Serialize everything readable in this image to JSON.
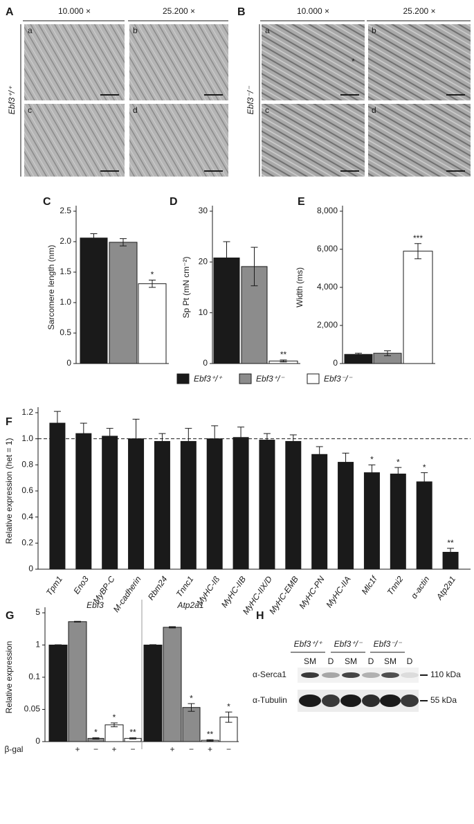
{
  "panel_letters": [
    "A",
    "B",
    "C",
    "D",
    "E",
    "F",
    "G",
    "H"
  ],
  "micrographs": {
    "magnifications": [
      "10.000 ×",
      "25.200 ×"
    ],
    "genotypes": [
      "Ebf3⁺/⁺",
      "Ebf3⁻/⁻"
    ],
    "image_labels": [
      "a",
      "b",
      "c",
      "d"
    ],
    "marker": "*"
  },
  "legend": [
    {
      "name": "Ebf3⁺/⁺",
      "color": "#1a1a1a"
    },
    {
      "name": "Ebf3⁺/⁻",
      "color": "#8c8c8c"
    },
    {
      "name": "Ebf3⁻/⁻",
      "color": "#ffffff"
    }
  ],
  "chart_data": [
    {
      "type": "bar",
      "ylabel": "Sarcomere length (nm)",
      "values": [
        2.06,
        1.99,
        1.31
      ],
      "errors": [
        0.07,
        0.06,
        0.06
      ],
      "significance": [
        null,
        null,
        "*"
      ],
      "ylim": [
        0,
        2.5
      ],
      "yticks": [
        0,
        0.5,
        {
          "value": 1,
          "label": "1.0"
        },
        1.5,
        {
          "value": 2,
          "label": "2.0"
        },
        2.5
      ]
    },
    {
      "type": "bar",
      "ylabel": "Sp Pt (mN cm⁻²)",
      "values": [
        20.8,
        19.1,
        0.5
      ],
      "errors": [
        3.2,
        3.8,
        0.2
      ],
      "significance": [
        null,
        null,
        "**"
      ],
      "ylim": [
        0,
        30
      ],
      "yticks": [
        0,
        10,
        20,
        30
      ]
    },
    {
      "type": "bar",
      "ylabel": "Width (ms)",
      "values": [
        480,
        540,
        5900
      ],
      "errors": [
        60,
        130,
        400
      ],
      "significance": [
        null,
        null,
        "***"
      ],
      "ylim": [
        0,
        8000
      ],
      "yticks": [
        0,
        {
          "value": 2000,
          "label": "2,000"
        },
        {
          "value": 4000,
          "label": "4,000"
        },
        {
          "value": 6000,
          "label": "6,000"
        },
        {
          "value": 8000,
          "label": "8,000"
        }
      ]
    },
    {
      "type": "bar",
      "ylabel": "Relative expression (het = 1)",
      "color": "#1a1a1a",
      "reference_line": 1,
      "categories": [
        "Tpm1",
        "Eno3",
        "MyBP-C",
        "M-cadherin",
        "Rbm24",
        "Tnnc1",
        "MyHC-Iß",
        "MyHC-IIB",
        "MyHC-IIX/D",
        "MyHC-EMB",
        "MyHC-PN",
        "MyHC-IIA",
        "Mlc1f",
        "Tnni2",
        "α-actin",
        "Atp2a1"
      ],
      "values": [
        1.12,
        1.04,
        1.02,
        1.0,
        0.98,
        0.98,
        1.0,
        1.01,
        0.99,
        0.98,
        0.88,
        0.82,
        0.74,
        0.73,
        0.67,
        0.13
      ],
      "errors": [
        0.09,
        0.08,
        0.06,
        0.15,
        0.06,
        0.1,
        0.1,
        0.08,
        0.05,
        0.05,
        0.06,
        0.07,
        0.06,
        0.05,
        0.07,
        0.03
      ],
      "significance": [
        null,
        null,
        null,
        null,
        null,
        null,
        null,
        null,
        null,
        null,
        null,
        null,
        "*",
        "*",
        "*",
        "**"
      ],
      "ylim": [
        0,
        1.2
      ],
      "yticks": [
        0,
        0.2,
        0.4,
        0.6,
        0.8,
        {
          "value": 1,
          "label": "1.0"
        },
        1.2
      ]
    },
    {
      "type": "bar",
      "title": "Ebf3",
      "ylabel": "Relative expression",
      "row_label": "β-gal",
      "yscale": "piecewise",
      "categories": [
        null,
        "+",
        "−",
        "+",
        "−"
      ],
      "colors": [
        "#1a1a1a",
        "#8c8c8c",
        "#8c8c8c",
        "#ffffff",
        "#ffffff"
      ],
      "values": [
        1.0,
        3.9,
        0.005,
        0.026,
        0.005
      ],
      "errors": [
        0.03,
        0.05,
        0.001,
        0.003,
        0.001
      ],
      "significance": [
        null,
        null,
        "*",
        "*",
        "**"
      ],
      "ylim": [
        0,
        5
      ],
      "yticks": [
        0,
        0.05,
        0.1,
        1,
        5
      ]
    },
    {
      "type": "bar",
      "title": "Atp2a1",
      "yscale": "piecewise",
      "categories": [
        null,
        "+",
        "−",
        "+",
        "−"
      ],
      "colors": [
        "#1a1a1a",
        "#8c8c8c",
        "#8c8c8c",
        "#ffffff",
        "#ffffff"
      ],
      "values": [
        1.0,
        3.2,
        0.053,
        0.002,
        0.038
      ],
      "errors": [
        0.04,
        0.08,
        0.006,
        0.001,
        0.008
      ],
      "significance": [
        null,
        null,
        "*",
        "**",
        "*"
      ],
      "ylim": [
        0,
        5
      ],
      "yticks": [
        0,
        0.05,
        0.1,
        1,
        5
      ]
    }
  ],
  "blot": {
    "genotypes": [
      "Ebf3⁺/⁺",
      "Ebf3⁺/⁻",
      "Ebf3⁻/⁻"
    ],
    "lanes": [
      "SM",
      "D",
      "SM",
      "D",
      "SM",
      "D"
    ],
    "rows": [
      {
        "label": "α-Serca1",
        "marker": "110 kDa"
      },
      {
        "label": "α-Tubulin",
        "marker": "55 kDa"
      }
    ]
  }
}
